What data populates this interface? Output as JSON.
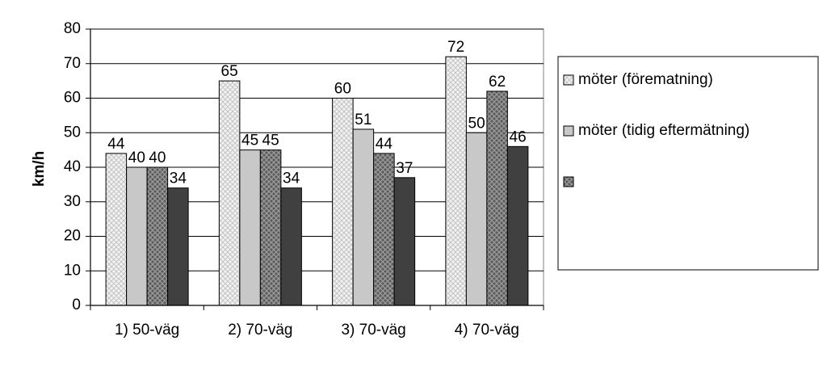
{
  "chart_data": {
    "type": "bar",
    "ylabel": "km/h",
    "xlabel": "",
    "ylim": [
      0,
      80
    ],
    "ytick_step": 10,
    "grid": true,
    "legend_position": "right",
    "categories": [
      "1) 50-väg",
      "2) 70-väg",
      "3) 70-väg",
      "4) 70-väg"
    ],
    "series": [
      {
        "name": "möter (förematning)",
        "values": [
          44,
          65,
          60,
          72
        ],
        "pattern": "light-check",
        "color": "#e6e6e6",
        "show_labels": true
      },
      {
        "name": "möter (tidig eftermätning)",
        "values": [
          40,
          45,
          51,
          50
        ],
        "pattern": "solid",
        "color": "#c8c8c8",
        "show_labels": true
      },
      {
        "name": "",
        "values": [
          40,
          45,
          44,
          62
        ],
        "pattern": "dark-check",
        "color": "#7a7a7a",
        "show_labels": true
      },
      {
        "values": [
          34,
          34,
          37,
          46
        ],
        "pattern": "solid",
        "color": "#404040",
        "show_labels": true
      }
    ]
  }
}
